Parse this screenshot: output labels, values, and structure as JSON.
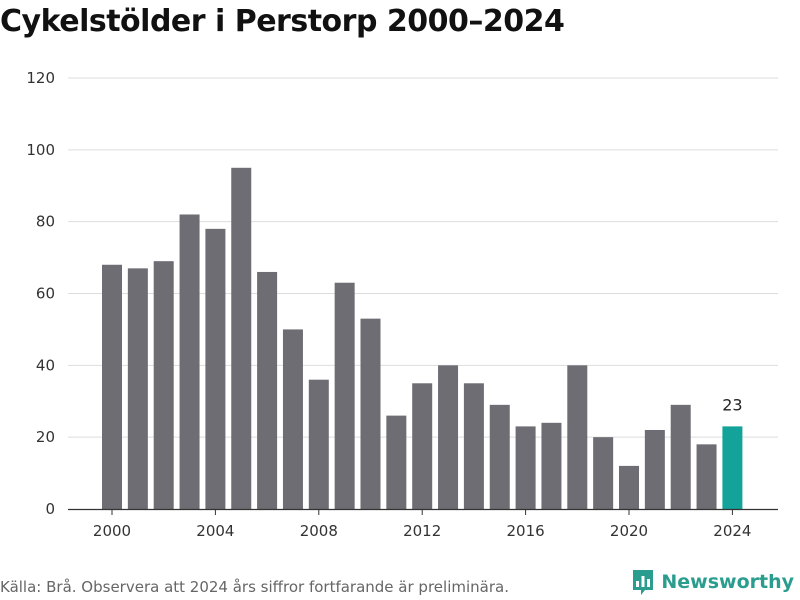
{
  "chart_data": {
    "type": "bar",
    "title": "Cykelstölder i Perstorp 2000–2024",
    "xlabel": "",
    "ylabel": "",
    "categories": [
      2000,
      2001,
      2002,
      2003,
      2004,
      2005,
      2006,
      2007,
      2008,
      2009,
      2010,
      2011,
      2012,
      2013,
      2014,
      2015,
      2016,
      2017,
      2018,
      2019,
      2020,
      2021,
      2022,
      2023,
      2024
    ],
    "values": [
      68,
      67,
      69,
      82,
      78,
      95,
      66,
      50,
      36,
      63,
      53,
      26,
      35,
      40,
      35,
      29,
      23,
      24,
      40,
      20,
      12,
      22,
      29,
      18,
      23
    ],
    "x_ticks": [
      "2000",
      "2004",
      "2008",
      "2012",
      "2016",
      "2020",
      "2024"
    ],
    "y_ticks": [
      "0",
      "20",
      "40",
      "60",
      "80",
      "100",
      "120"
    ],
    "ylim": [
      0,
      120
    ],
    "grid": "horizontal",
    "highlight": {
      "category": 2024,
      "label": "23"
    },
    "colors": {
      "bar": "#6e6d73",
      "highlight": "#14a39a",
      "grid": "#dddddd"
    }
  },
  "footer": {
    "source": "Källa: Brå. Observera att 2024 års siffror fortfarande är preliminära.",
    "brand": "Newsworthy",
    "brand_icon": "bar-chart-icon",
    "brand_color": "#2a9d8f"
  }
}
